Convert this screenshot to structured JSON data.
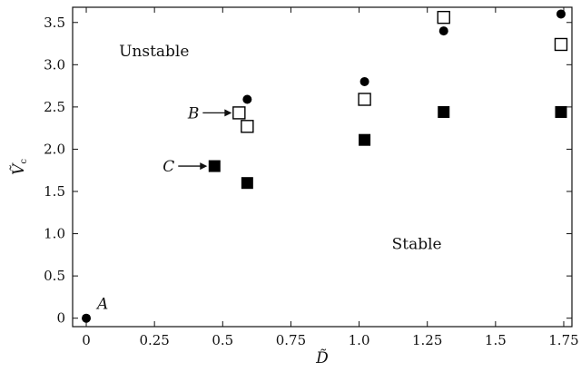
{
  "chart_data": {
    "type": "scatter",
    "title": "",
    "xlabel": "D̃",
    "ylabel_main": "Ṽ",
    "ylabel_sub": "c",
    "xlim": [
      -0.05,
      1.78
    ],
    "ylim": [
      -0.1,
      3.68
    ],
    "x_ticks": [
      0,
      0.25,
      0.5,
      0.75,
      1.0,
      1.25,
      1.5,
      1.75
    ],
    "x_tick_labels": [
      "0",
      "0.25",
      "0.5",
      "0.75",
      "1.0",
      "1.25",
      "1.5",
      "1.75"
    ],
    "y_ticks": [
      0,
      0.5,
      1.0,
      1.5,
      2.0,
      2.5,
      3.0,
      3.5
    ],
    "y_tick_labels": [
      "0",
      "0.5",
      "1.0",
      "1.5",
      "2.0",
      "2.5",
      "3.0",
      "3.5"
    ],
    "grid": false,
    "legend": "none",
    "series": [
      {
        "marker": "filled-circle",
        "color": "#000000",
        "points": [
          [
            0,
            0
          ],
          [
            0.59,
            2.59
          ],
          [
            1.02,
            2.8
          ],
          [
            1.31,
            3.4
          ],
          [
            1.74,
            3.6
          ]
        ]
      },
      {
        "marker": "open-square",
        "color": "#000000",
        "points": [
          [
            0.56,
            2.43
          ],
          [
            0.59,
            2.27
          ],
          [
            1.02,
            2.59
          ],
          [
            1.31,
            3.56
          ],
          [
            1.74,
            3.24
          ]
        ]
      },
      {
        "marker": "filled-square",
        "color": "#000000",
        "points": [
          [
            0.47,
            1.8
          ],
          [
            0.59,
            1.6
          ],
          [
            1.02,
            2.11
          ],
          [
            1.31,
            2.44
          ],
          [
            1.74,
            2.44
          ]
        ]
      }
    ],
    "regions": [
      {
        "label": "Unstable",
        "x": 0.12,
        "y": 3.1
      },
      {
        "label": "Stable",
        "x": 1.12,
        "y": 0.82
      }
    ],
    "annotations": [
      {
        "label": "A",
        "x": 0.0,
        "y": 0.0,
        "arrow": false
      },
      {
        "label": "B",
        "x": 0.56,
        "y": 2.43,
        "arrow": true
      },
      {
        "label": "C",
        "x": 0.47,
        "y": 1.8,
        "arrow": true
      }
    ]
  }
}
